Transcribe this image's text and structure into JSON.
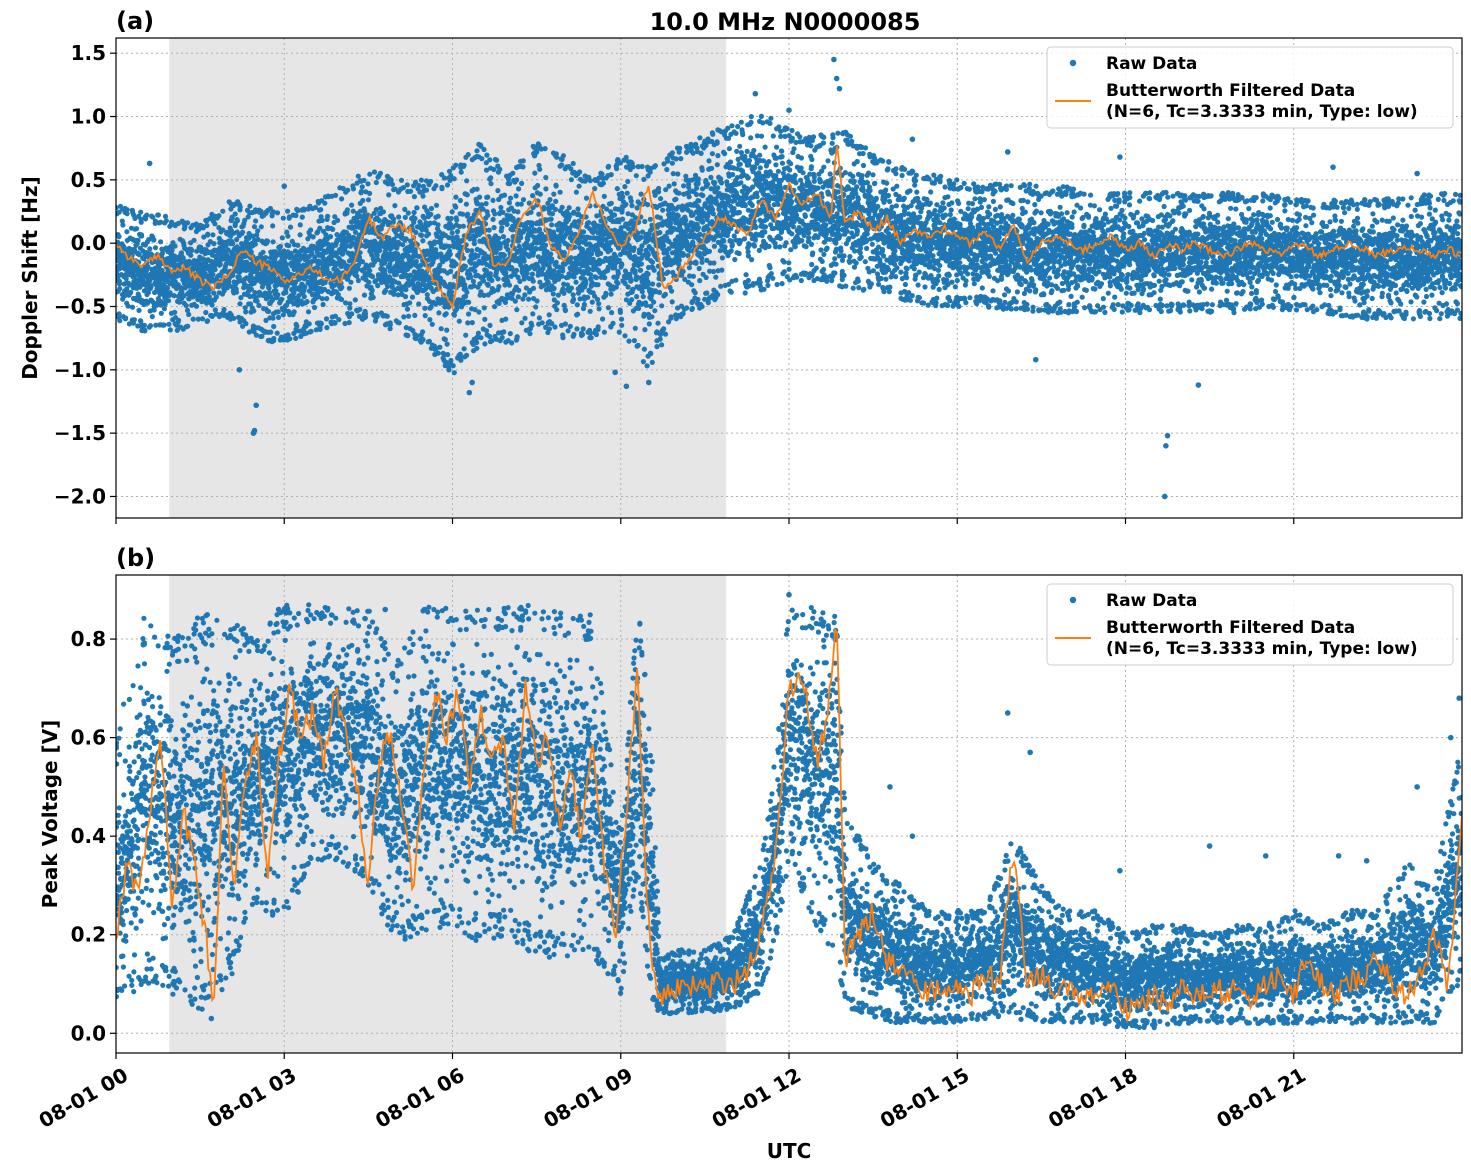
{
  "figure": {
    "title": "10.0 MHz N0000085",
    "xlabel": "UTC",
    "x_ticks": [
      "08-01 00",
      "08-01 03",
      "08-01 06",
      "08-01 09",
      "08-01 12",
      "08-01 15",
      "08-01 18",
      "08-01 21"
    ],
    "x_tick_hours": [
      0,
      3,
      6,
      9,
      12,
      15,
      18,
      21
    ],
    "x_range_hours": [
      0,
      24
    ],
    "night_shading_hours": [
      0.95,
      10.88
    ],
    "colors": {
      "raw": "#1f77b4",
      "filtered": "#ff7f0e",
      "shade": "#e6e6e6"
    }
  },
  "chart_data": [
    {
      "type": "scatter",
      "panel_label": "(a)",
      "ylabel": "Doppler Shift [Hz]",
      "ylim": [
        -2.17,
        1.62
      ],
      "y_ticks": [
        -2.0,
        -1.5,
        -1.0,
        -0.5,
        0.0,
        0.5,
        1.0,
        1.5
      ],
      "y_tick_labels": [
        "−2.0",
        "−1.5",
        "−1.0",
        "−0.5",
        "0.0",
        "0.5",
        "1.0",
        "1.5"
      ],
      "grid": true,
      "legend": {
        "position": "top-right",
        "raw_label": "Raw Data",
        "filtered_label_1": "Butterworth Filtered Data",
        "filtered_label_2": "(N=6, Tc=3.3333 min, Type: low)"
      },
      "series": [
        {
          "name": "Raw Data",
          "kind": "scatter-band",
          "x": [
            0,
            0.5,
            1,
            1.5,
            2,
            2.5,
            3,
            3.5,
            4,
            4.5,
            5,
            5.5,
            6,
            6.5,
            7,
            7.5,
            8,
            8.5,
            9,
            9.5,
            10,
            10.5,
            11,
            11.5,
            12,
            12.5,
            13,
            13.5,
            14,
            14.5,
            15,
            15.5,
            16,
            16.5,
            17,
            17.5,
            18,
            18.5,
            19,
            19.5,
            20,
            20.5,
            21,
            21.5,
            22,
            22.5,
            23,
            23.5,
            24
          ],
          "upper": [
            0.3,
            0.25,
            0.2,
            0.15,
            0.35,
            0.3,
            0.25,
            0.3,
            0.45,
            0.6,
            0.5,
            0.5,
            0.6,
            0.8,
            0.55,
            0.8,
            0.7,
            0.5,
            0.7,
            0.6,
            0.75,
            0.85,
            0.95,
            1.05,
            0.9,
            0.85,
            0.9,
            0.7,
            0.6,
            0.55,
            0.5,
            0.45,
            0.5,
            0.45,
            0.45,
            0.4,
            0.4,
            0.4,
            0.4,
            0.4,
            0.4,
            0.4,
            0.35,
            0.35,
            0.35,
            0.35,
            0.35,
            0.4,
            0.4
          ],
          "lower": [
            -0.6,
            -0.7,
            -0.7,
            -0.65,
            -0.6,
            -0.75,
            -0.8,
            -0.7,
            -0.65,
            -0.6,
            -0.7,
            -0.8,
            -1.05,
            -0.8,
            -0.8,
            -0.7,
            -0.75,
            -0.75,
            -0.7,
            -1.0,
            -0.6,
            -0.5,
            -0.4,
            -0.4,
            -0.3,
            -0.3,
            -0.35,
            -0.4,
            -0.45,
            -0.5,
            -0.5,
            -0.5,
            -0.55,
            -0.55,
            -0.55,
            -0.55,
            -0.55,
            -0.55,
            -0.55,
            -0.55,
            -0.55,
            -0.5,
            -0.55,
            -0.55,
            -0.6,
            -0.6,
            -0.6,
            -0.6,
            -0.6
          ]
        },
        {
          "name": "Raw Data",
          "kind": "scatter-points",
          "x": [
            0.6,
            2.45,
            2.47,
            2.5,
            12.8,
            12.85,
            12.9,
            9.5,
            18.7,
            18.72,
            18.75,
            19.3,
            15.9,
            14.2,
            12.0,
            11.4,
            6.3,
            6.35,
            8.9,
            9.1,
            2.2,
            3.0,
            16.4,
            17.9,
            21.7,
            23.2
          ],
          "y": [
            0.63,
            -1.5,
            -1.48,
            -1.28,
            1.45,
            1.3,
            1.22,
            -1.1,
            -2.0,
            -1.6,
            -1.52,
            -1.12,
            0.72,
            0.82,
            1.05,
            1.18,
            -1.18,
            -1.1,
            -1.02,
            -1.13,
            -1.0,
            0.45,
            -0.92,
            0.68,
            0.6,
            0.55
          ]
        },
        {
          "name": "Butterworth Filtered Data",
          "kind": "line",
          "x": [
            0,
            0.25,
            0.5,
            0.75,
            1,
            1.25,
            1.5,
            1.75,
            2,
            2.25,
            2.5,
            2.75,
            3,
            3.25,
            3.5,
            3.75,
            4,
            4.25,
            4.5,
            4.75,
            5,
            5.25,
            5.5,
            5.75,
            6,
            6.25,
            6.5,
            6.75,
            7,
            7.25,
            7.5,
            7.75,
            8,
            8.25,
            8.5,
            8.75,
            9,
            9.25,
            9.5,
            9.75,
            10,
            10.25,
            10.5,
            10.75,
            11,
            11.25,
            11.5,
            11.75,
            12,
            12.25,
            12.5,
            12.75,
            12.85,
            13,
            13.25,
            13.5,
            13.75,
            14,
            14.25,
            14.5,
            14.75,
            15,
            15.25,
            15.5,
            15.75,
            16,
            16.25,
            16.5,
            16.75,
            17,
            17.25,
            17.5,
            17.75,
            18,
            18.25,
            18.5,
            18.75,
            19,
            19.25,
            19.5,
            19.75,
            20,
            20.25,
            20.5,
            20.75,
            21,
            21.25,
            21.5,
            21.75,
            22,
            22.25,
            22.5,
            22.75,
            23,
            23.25,
            23.5,
            23.75,
            24
          ],
          "y": [
            0.0,
            -0.12,
            -0.18,
            -0.1,
            -0.22,
            -0.2,
            -0.3,
            -0.35,
            -0.25,
            -0.05,
            -0.15,
            -0.2,
            -0.3,
            -0.25,
            -0.2,
            -0.28,
            -0.3,
            -0.15,
            0.2,
            0.05,
            0.15,
            0.1,
            -0.15,
            -0.35,
            -0.5,
            0.1,
            0.25,
            -0.2,
            -0.15,
            0.25,
            0.35,
            0.0,
            -0.15,
            0.1,
            0.4,
            0.15,
            -0.05,
            0.1,
            0.48,
            -0.35,
            -0.25,
            -0.1,
            0.05,
            0.2,
            0.15,
            0.05,
            0.35,
            0.2,
            0.45,
            0.3,
            0.4,
            0.2,
            0.8,
            0.15,
            0.25,
            0.1,
            0.2,
            0.0,
            0.1,
            0.05,
            0.12,
            0.05,
            0.0,
            0.1,
            -0.05,
            0.15,
            -0.15,
            0.0,
            0.05,
            0.0,
            -0.05,
            0.0,
            0.05,
            -0.05,
            0.0,
            -0.1,
            0.0,
            -0.05,
            0.0,
            -0.05,
            -0.1,
            -0.05,
            0.0,
            -0.05,
            -0.1,
            0.0,
            -0.05,
            -0.1,
            -0.05,
            0.0,
            -0.05,
            -0.1,
            -0.05,
            -0.05,
            -0.05,
            -0.1,
            -0.05,
            -0.1
          ]
        }
      ]
    },
    {
      "type": "scatter",
      "panel_label": "(b)",
      "ylabel": "Peak Voltage [V]",
      "ylim": [
        -0.04,
        0.93
      ],
      "y_ticks": [
        0.0,
        0.2,
        0.4,
        0.6,
        0.8
      ],
      "y_tick_labels": [
        "0.0",
        "0.2",
        "0.4",
        "0.6",
        "0.8"
      ],
      "grid": true,
      "legend": {
        "position": "top-right",
        "raw_label": "Raw Data",
        "filtered_label_1": "Butterworth Filtered Data",
        "filtered_label_2": "(N=6, Tc=3.3333 min, Type: low)"
      },
      "series": [
        {
          "name": "Raw Data",
          "kind": "scatter-band",
          "x": [
            0,
            0.5,
            1,
            1.5,
            2,
            2.5,
            3,
            3.5,
            4,
            4.5,
            5,
            5.5,
            6,
            6.5,
            7,
            7.5,
            8,
            8.5,
            9,
            9.3,
            9.55,
            9.7,
            10,
            10.5,
            11,
            11.5,
            11.8,
            12,
            12.5,
            12.85,
            13,
            13.5,
            14,
            14.5,
            15,
            15.5,
            16,
            16.5,
            17,
            17.5,
            18,
            18.5,
            19,
            19.5,
            20,
            20.5,
            21,
            21.5,
            22,
            22.5,
            23,
            23.5,
            24
          ],
          "upper": [
            0.6,
            0.85,
            0.8,
            0.85,
            0.85,
            0.8,
            0.87,
            0.87,
            0.87,
            0.87,
            0.75,
            0.87,
            0.87,
            0.87,
            0.87,
            0.87,
            0.86,
            0.85,
            0.4,
            0.88,
            0.6,
            0.15,
            0.17,
            0.17,
            0.2,
            0.35,
            0.6,
            0.88,
            0.86,
            0.85,
            0.45,
            0.35,
            0.3,
            0.25,
            0.25,
            0.25,
            0.4,
            0.3,
            0.25,
            0.25,
            0.2,
            0.22,
            0.22,
            0.2,
            0.22,
            0.22,
            0.25,
            0.22,
            0.25,
            0.25,
            0.35,
            0.3,
            0.6
          ],
          "lower": [
            0.05,
            0.1,
            0.08,
            0.04,
            0.1,
            0.25,
            0.22,
            0.35,
            0.35,
            0.3,
            0.18,
            0.2,
            0.22,
            0.18,
            0.2,
            0.15,
            0.15,
            0.15,
            0.08,
            0.3,
            0.05,
            0.04,
            0.04,
            0.04,
            0.05,
            0.08,
            0.2,
            0.35,
            0.2,
            0.15,
            0.05,
            0.03,
            0.02,
            0.02,
            0.02,
            0.03,
            0.03,
            0.02,
            0.02,
            0.02,
            0.01,
            0.01,
            0.02,
            0.02,
            0.02,
            0.02,
            0.02,
            0.02,
            0.02,
            0.02,
            0.02,
            0.02,
            0.1
          ]
        },
        {
          "name": "Raw Data",
          "kind": "scatter-points",
          "x": [
            12.0,
            15.9,
            16.3,
            14.2,
            13.8,
            17.9,
            19.5,
            20.5,
            21.8,
            22.3,
            23.2,
            23.8,
            23.95,
            4.8,
            2.9,
            5.5,
            1.7
          ],
          "y": [
            0.89,
            0.65,
            0.57,
            0.4,
            0.5,
            0.33,
            0.38,
            0.36,
            0.36,
            0.35,
            0.5,
            0.6,
            0.68,
            0.86,
            0.86,
            0.86,
            0.03
          ]
        },
        {
          "name": "Butterworth Filtered Data",
          "kind": "line",
          "x": [
            0,
            0.2,
            0.4,
            0.6,
            0.8,
            1,
            1.2,
            1.4,
            1.6,
            1.75,
            1.9,
            2.1,
            2.3,
            2.5,
            2.7,
            2.9,
            3.1,
            3.3,
            3.5,
            3.7,
            3.9,
            4.1,
            4.3,
            4.5,
            4.7,
            4.9,
            5.1,
            5.3,
            5.5,
            5.7,
            5.9,
            6.1,
            6.3,
            6.5,
            6.7,
            6.9,
            7.1,
            7.3,
            7.5,
            7.7,
            7.9,
            8.1,
            8.3,
            8.5,
            8.7,
            8.9,
            9.1,
            9.3,
            9.45,
            9.6,
            9.75,
            10,
            10.25,
            10.5,
            10.75,
            11,
            11.25,
            11.5,
            11.75,
            12,
            12.25,
            12.5,
            12.7,
            12.85,
            13,
            13.25,
            13.5,
            13.75,
            14,
            14.25,
            14.5,
            14.75,
            15,
            15.25,
            15.5,
            15.75,
            16,
            16.25,
            16.5,
            16.75,
            17,
            17.25,
            17.5,
            17.75,
            18,
            18.25,
            18.5,
            18.75,
            19,
            19.25,
            19.5,
            19.75,
            20,
            20.25,
            20.5,
            20.75,
            21,
            21.25,
            21.5,
            21.75,
            22,
            22.25,
            22.5,
            22.75,
            23,
            23.25,
            23.5,
            23.75,
            23.9,
            24
          ],
          "y": [
            0.2,
            0.35,
            0.28,
            0.45,
            0.6,
            0.25,
            0.45,
            0.35,
            0.2,
            0.05,
            0.55,
            0.3,
            0.5,
            0.6,
            0.3,
            0.55,
            0.7,
            0.6,
            0.65,
            0.55,
            0.7,
            0.6,
            0.5,
            0.3,
            0.55,
            0.62,
            0.45,
            0.3,
            0.55,
            0.7,
            0.6,
            0.7,
            0.5,
            0.65,
            0.55,
            0.6,
            0.4,
            0.7,
            0.55,
            0.6,
            0.42,
            0.55,
            0.38,
            0.6,
            0.35,
            0.2,
            0.45,
            0.75,
            0.3,
            0.1,
            0.08,
            0.09,
            0.1,
            0.09,
            0.1,
            0.1,
            0.12,
            0.2,
            0.35,
            0.7,
            0.72,
            0.55,
            0.65,
            0.85,
            0.15,
            0.2,
            0.25,
            0.15,
            0.12,
            0.1,
            0.08,
            0.09,
            0.1,
            0.08,
            0.12,
            0.1,
            0.38,
            0.1,
            0.12,
            0.08,
            0.1,
            0.07,
            0.08,
            0.1,
            0.05,
            0.06,
            0.08,
            0.06,
            0.09,
            0.07,
            0.1,
            0.08,
            0.1,
            0.06,
            0.1,
            0.12,
            0.08,
            0.15,
            0.1,
            0.08,
            0.1,
            0.12,
            0.15,
            0.1,
            0.08,
            0.12,
            0.2,
            0.1,
            0.3,
            0.42
          ]
        }
      ]
    }
  ]
}
